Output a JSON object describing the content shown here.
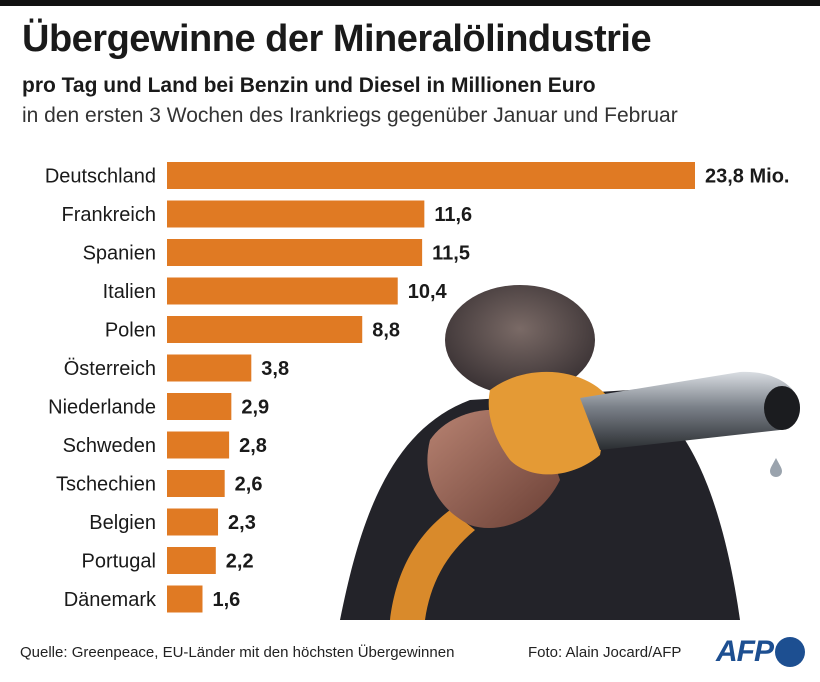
{
  "header": {
    "title": "Übergewinne der Mineralölindustrie",
    "subtitle": "pro Tag und Land bei Benzin und Diesel in Millionen Euro",
    "subtitle2": "in den ersten 3 Wochen des Irankriegs gegenüber Januar und Februar"
  },
  "colors": {
    "bar": "#e07a23",
    "text": "#1a1a1a",
    "logo": "#1d4f91"
  },
  "chart_data": {
    "type": "bar",
    "orientation": "horizontal",
    "title": "Übergewinne der Mineralölindustrie",
    "unit": "Millionen Euro",
    "categories": [
      "Deutschland",
      "Frankreich",
      "Spanien",
      "Italien",
      "Polen",
      "Österreich",
      "Niederlande",
      "Schweden",
      "Tschechien",
      "Belgien",
      "Portugal",
      "Dänemark"
    ],
    "values": [
      23.8,
      11.6,
      11.5,
      10.4,
      8.8,
      3.8,
      2.9,
      2.8,
      2.6,
      2.3,
      2.2,
      1.6
    ],
    "value_labels": [
      "23,8 Mio.",
      "11,6",
      "11,5",
      "10,4",
      "8,8",
      "3,8",
      "2,9",
      "2,8",
      "2,6",
      "2,3",
      "2,2",
      "1,6"
    ],
    "xlim": [
      0,
      23.8
    ],
    "grid": false,
    "legend": "none"
  },
  "footer": {
    "source": "Quelle: Greenpeace, EU-Länder mit den höchsten Übergewinnen",
    "photo_credit": "Foto: Alain Jocard/AFP",
    "logo": "AFP"
  }
}
